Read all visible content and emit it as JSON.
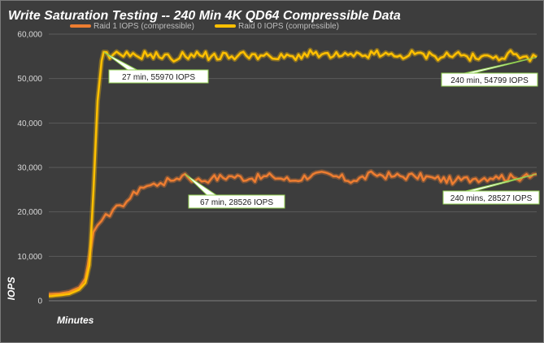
{
  "chart_data": {
    "type": "line",
    "title": "Write Saturation Testing -- 240 Min 4K QD64 Compressible Data",
    "xlabel": "Minutes",
    "ylabel": "IOPS",
    "xlim": [
      0,
      240
    ],
    "ylim": [
      0,
      60000
    ],
    "yticks": [
      0,
      10000,
      20000,
      30000,
      40000,
      50000,
      60000
    ],
    "ytick_labels": [
      "0",
      "10,000",
      "20,000",
      "30,000",
      "40,000",
      "50,000",
      "60,000"
    ],
    "grid": true,
    "legend_position": "top",
    "series": [
      {
        "name": "Raid 1 IOPS (compressible)",
        "color": "#ed7d31",
        "x": [
          0,
          5,
          10,
          15,
          18,
          20,
          22,
          24,
          26,
          28,
          30,
          35,
          40,
          45,
          50,
          55,
          60,
          63,
          67,
          72,
          80,
          90,
          100,
          110,
          120,
          130,
          140,
          150,
          160,
          170,
          180,
          190,
          200,
          210,
          220,
          230,
          235,
          240
        ],
        "y": [
          1500,
          1600,
          2000,
          3000,
          5000,
          10000,
          15500,
          17000,
          18000,
          19500,
          19000,
          21500,
          23000,
          25500,
          26000,
          26500,
          27000,
          27500,
          28526,
          27000,
          27500,
          28000,
          27500,
          28000,
          27000,
          28500,
          28000,
          27000,
          28500,
          28000,
          28000,
          27500,
          27000,
          27500,
          28000,
          27500,
          28500,
          28527
        ]
      },
      {
        "name": "Raid 0 IOPS (compressible)",
        "color": "#ffc000",
        "x": [
          0,
          5,
          10,
          15,
          18,
          20,
          22,
          24,
          26,
          27,
          30,
          35,
          40,
          50,
          60,
          70,
          80,
          90,
          100,
          110,
          120,
          130,
          140,
          150,
          160,
          170,
          180,
          190,
          200,
          210,
          220,
          230,
          235,
          240
        ],
        "y": [
          1000,
          1200,
          1500,
          2500,
          4000,
          8000,
          25000,
          45000,
          54000,
          55970,
          54500,
          55500,
          55000,
          55500,
          54500,
          55500,
          55000,
          55000,
          55500,
          54500,
          55000,
          55500,
          55000,
          55000,
          55500,
          55000,
          55500,
          55000,
          55500,
          54500,
          55000,
          55500,
          55000,
          54799
        ]
      }
    ],
    "annotations": [
      {
        "text": "27 min, 55970 IOPS",
        "series": 1,
        "x": 27,
        "y": 55970
      },
      {
        "text": "240 min, 54799 IOPS",
        "series": 1,
        "x": 240,
        "y": 54799
      },
      {
        "text": "67 min, 28526 IOPS",
        "series": 0,
        "x": 67,
        "y": 28526
      },
      {
        "text": "240 mins, 28527 IOPS",
        "series": 0,
        "x": 240,
        "y": 28527
      }
    ]
  }
}
